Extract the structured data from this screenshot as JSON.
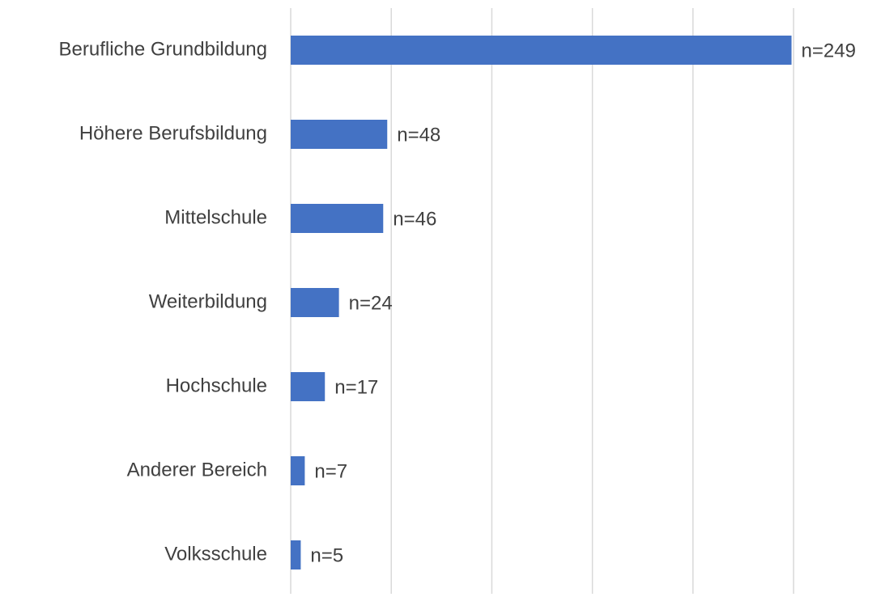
{
  "chart_data": {
    "type": "bar",
    "orientation": "horizontal",
    "categories": [
      "Berufliche Grundbildung",
      "Höhere Berufsbildung",
      "Mittelschule",
      "Weiterbildung",
      "Hochschule",
      "Anderer Bereich",
      "Volksschule"
    ],
    "values": [
      249,
      48,
      46,
      24,
      17,
      7,
      5
    ],
    "value_labels": [
      "n=249",
      "n=48",
      "n=46",
      "n=24",
      "n=17",
      "n=7",
      "n=5"
    ],
    "color": "#4472c4",
    "xlim": [
      0,
      250
    ],
    "xticks": [
      0,
      50,
      100,
      150,
      200,
      250
    ],
    "grid": true
  }
}
